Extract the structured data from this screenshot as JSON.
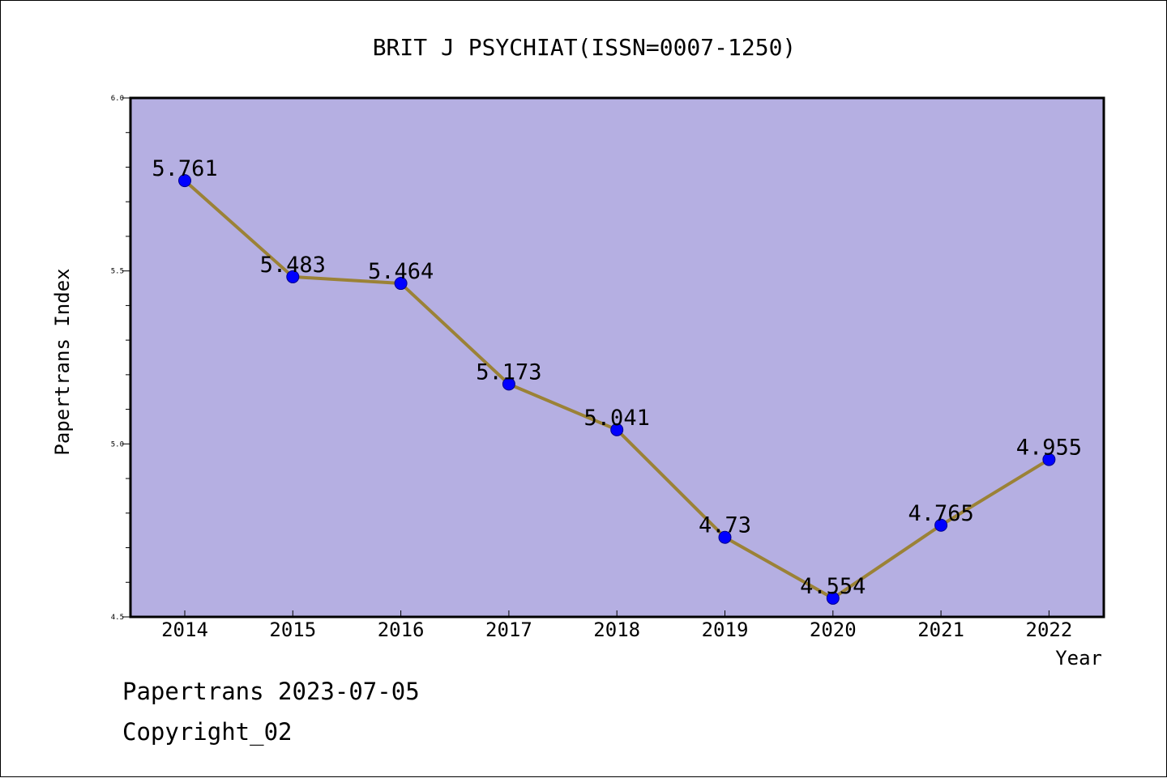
{
  "chart_data": {
    "type": "line",
    "title": "BRIT J PSYCHIAT(ISSN=0007-1250)",
    "xlabel": "Year",
    "ylabel": "Papertrans Index",
    "categories": [
      "2014",
      "2015",
      "2016",
      "2017",
      "2018",
      "2019",
      "2020",
      "2021",
      "2022"
    ],
    "series": [
      {
        "values": [
          5.761,
          5.483,
          5.464,
          5.173,
          5.041,
          4.73,
          4.554,
          4.765,
          4.955
        ]
      }
    ],
    "data_labels": [
      "5.761",
      "5.483",
      "5.464",
      "5.173",
      "5.041",
      "4.73",
      "4.554",
      "4.765",
      "4.955"
    ],
    "ylim": [
      4.5,
      6.0
    ],
    "yticks": [
      "4.5",
      "5.0",
      "5.5",
      "6.0"
    ],
    "y_minor_step": 0.1,
    "grid": false,
    "colors": {
      "plot_background": "#b5afe2",
      "line": "#9b8236",
      "marker": "#0000ff",
      "marker_edge": "#00008a"
    }
  },
  "footer": {
    "line1": "Papertrans 2023-07-05",
    "line2": "Copyright_02"
  }
}
